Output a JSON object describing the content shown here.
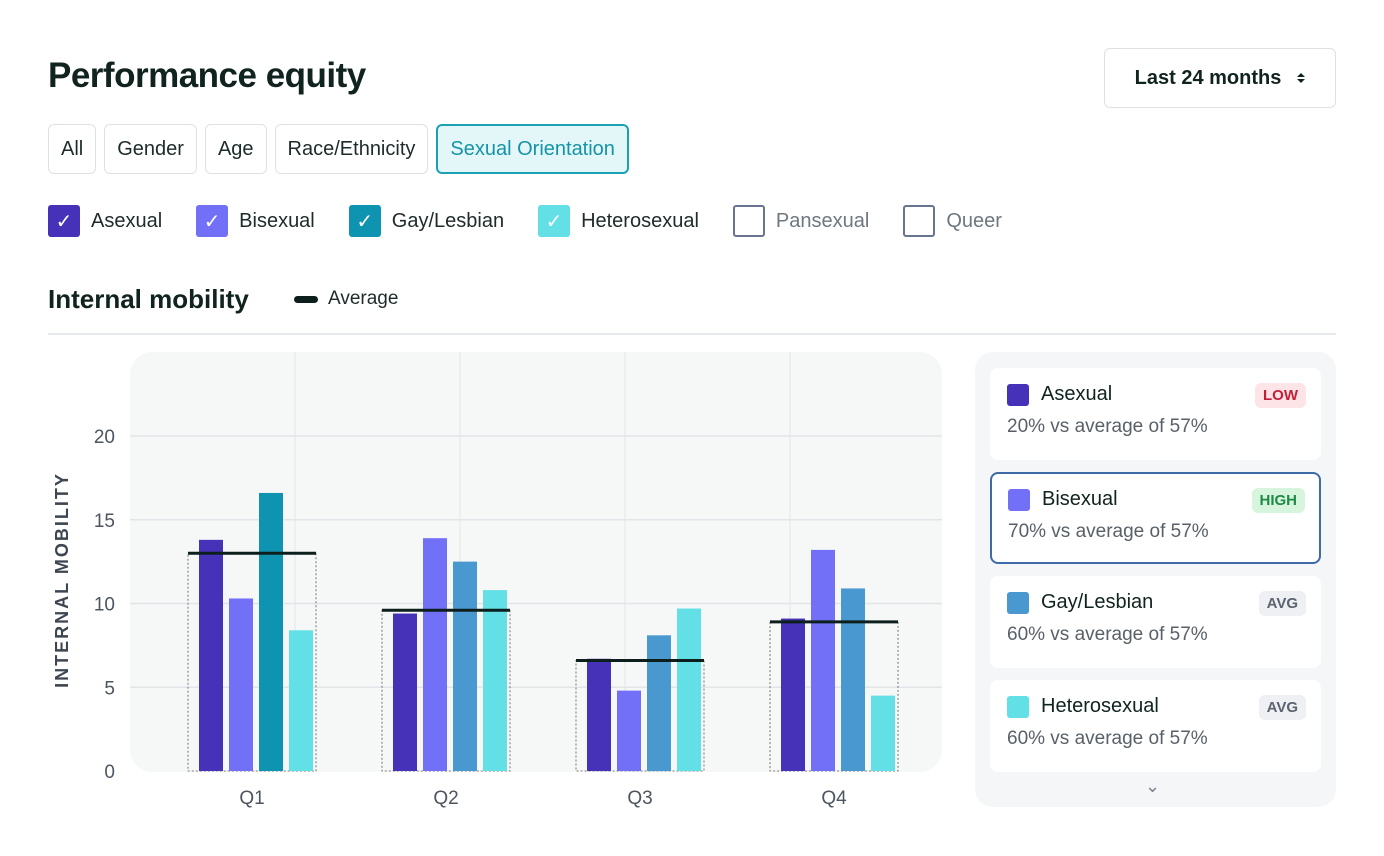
{
  "title": "Performance equity",
  "period": {
    "label": "Last 24 months"
  },
  "tabs": [
    {
      "label": "All"
    },
    {
      "label": "Gender"
    },
    {
      "label": "Age"
    },
    {
      "label": "Race/Ethnicity"
    },
    {
      "label": "Sexual Orientation",
      "active": true
    }
  ],
  "filters": [
    {
      "label": "Asexual",
      "checked": true,
      "color": "#4532b8"
    },
    {
      "label": "Bisexual",
      "checked": true,
      "color": "#7370f8"
    },
    {
      "label": "Gay/Lesbian",
      "checked": true,
      "color": "#0e93b1"
    },
    {
      "label": "Heterosexual",
      "checked": true,
      "color": "#63e0e6"
    },
    {
      "label": "Pansexual",
      "checked": false
    },
    {
      "label": "Queer",
      "checked": false
    }
  ],
  "section": {
    "title": "Internal mobility",
    "average_label": "Average"
  },
  "chart_data": {
    "type": "bar",
    "categories": [
      "Q1",
      "Q2",
      "Q3",
      "Q4"
    ],
    "ylabel": "INTERNAL MOBILITY",
    "ylim": [
      0,
      24
    ],
    "yticks": [
      0,
      5,
      10,
      15,
      20
    ],
    "grid": true,
    "series": [
      {
        "name": "Asexual",
        "values": [
          13.8,
          9.4,
          6.7,
          9.1
        ],
        "color": "#4532b8"
      },
      {
        "name": "Bisexual",
        "values": [
          10.3,
          13.9,
          4.8,
          13.2
        ],
        "color": "#7370f8"
      },
      {
        "name": "Gay/Lesbian",
        "values": [
          16.6,
          12.5,
          8.1,
          10.9
        ],
        "color": "#4a98d0",
        "point_colors": [
          "#0e93b1",
          "#4a98d0",
          "#4a98d0",
          "#4a98d0"
        ]
      },
      {
        "name": "Heterosexual",
        "values": [
          8.4,
          10.8,
          9.7,
          4.5
        ],
        "color": "#63e0e6"
      }
    ],
    "average": [
      13.0,
      9.6,
      6.6,
      8.9
    ]
  },
  "legend_cards": [
    {
      "name": "Asexual",
      "color": "#4532b8",
      "detail": "20% vs average of 57%",
      "badge": "LOW",
      "badge_bg": "#fde4e6",
      "badge_fg": "#c2203a"
    },
    {
      "name": "Bisexual",
      "color": "#7370f8",
      "detail": "70% vs average of 57%",
      "badge": "HIGH",
      "badge_bg": "#d6f5dc",
      "badge_fg": "#1f8a48",
      "selected": true
    },
    {
      "name": "Gay/Lesbian",
      "color": "#4a98d0",
      "detail": "60% vs average of 57%",
      "badge": "AVG",
      "badge_bg": "#eef0f3",
      "badge_fg": "#5c6470"
    },
    {
      "name": "Heterosexual",
      "color": "#63e0e6",
      "detail": "60% vs average of 57%",
      "badge": "AVG",
      "badge_bg": "#eef0f3",
      "badge_fg": "#5c6470"
    }
  ]
}
